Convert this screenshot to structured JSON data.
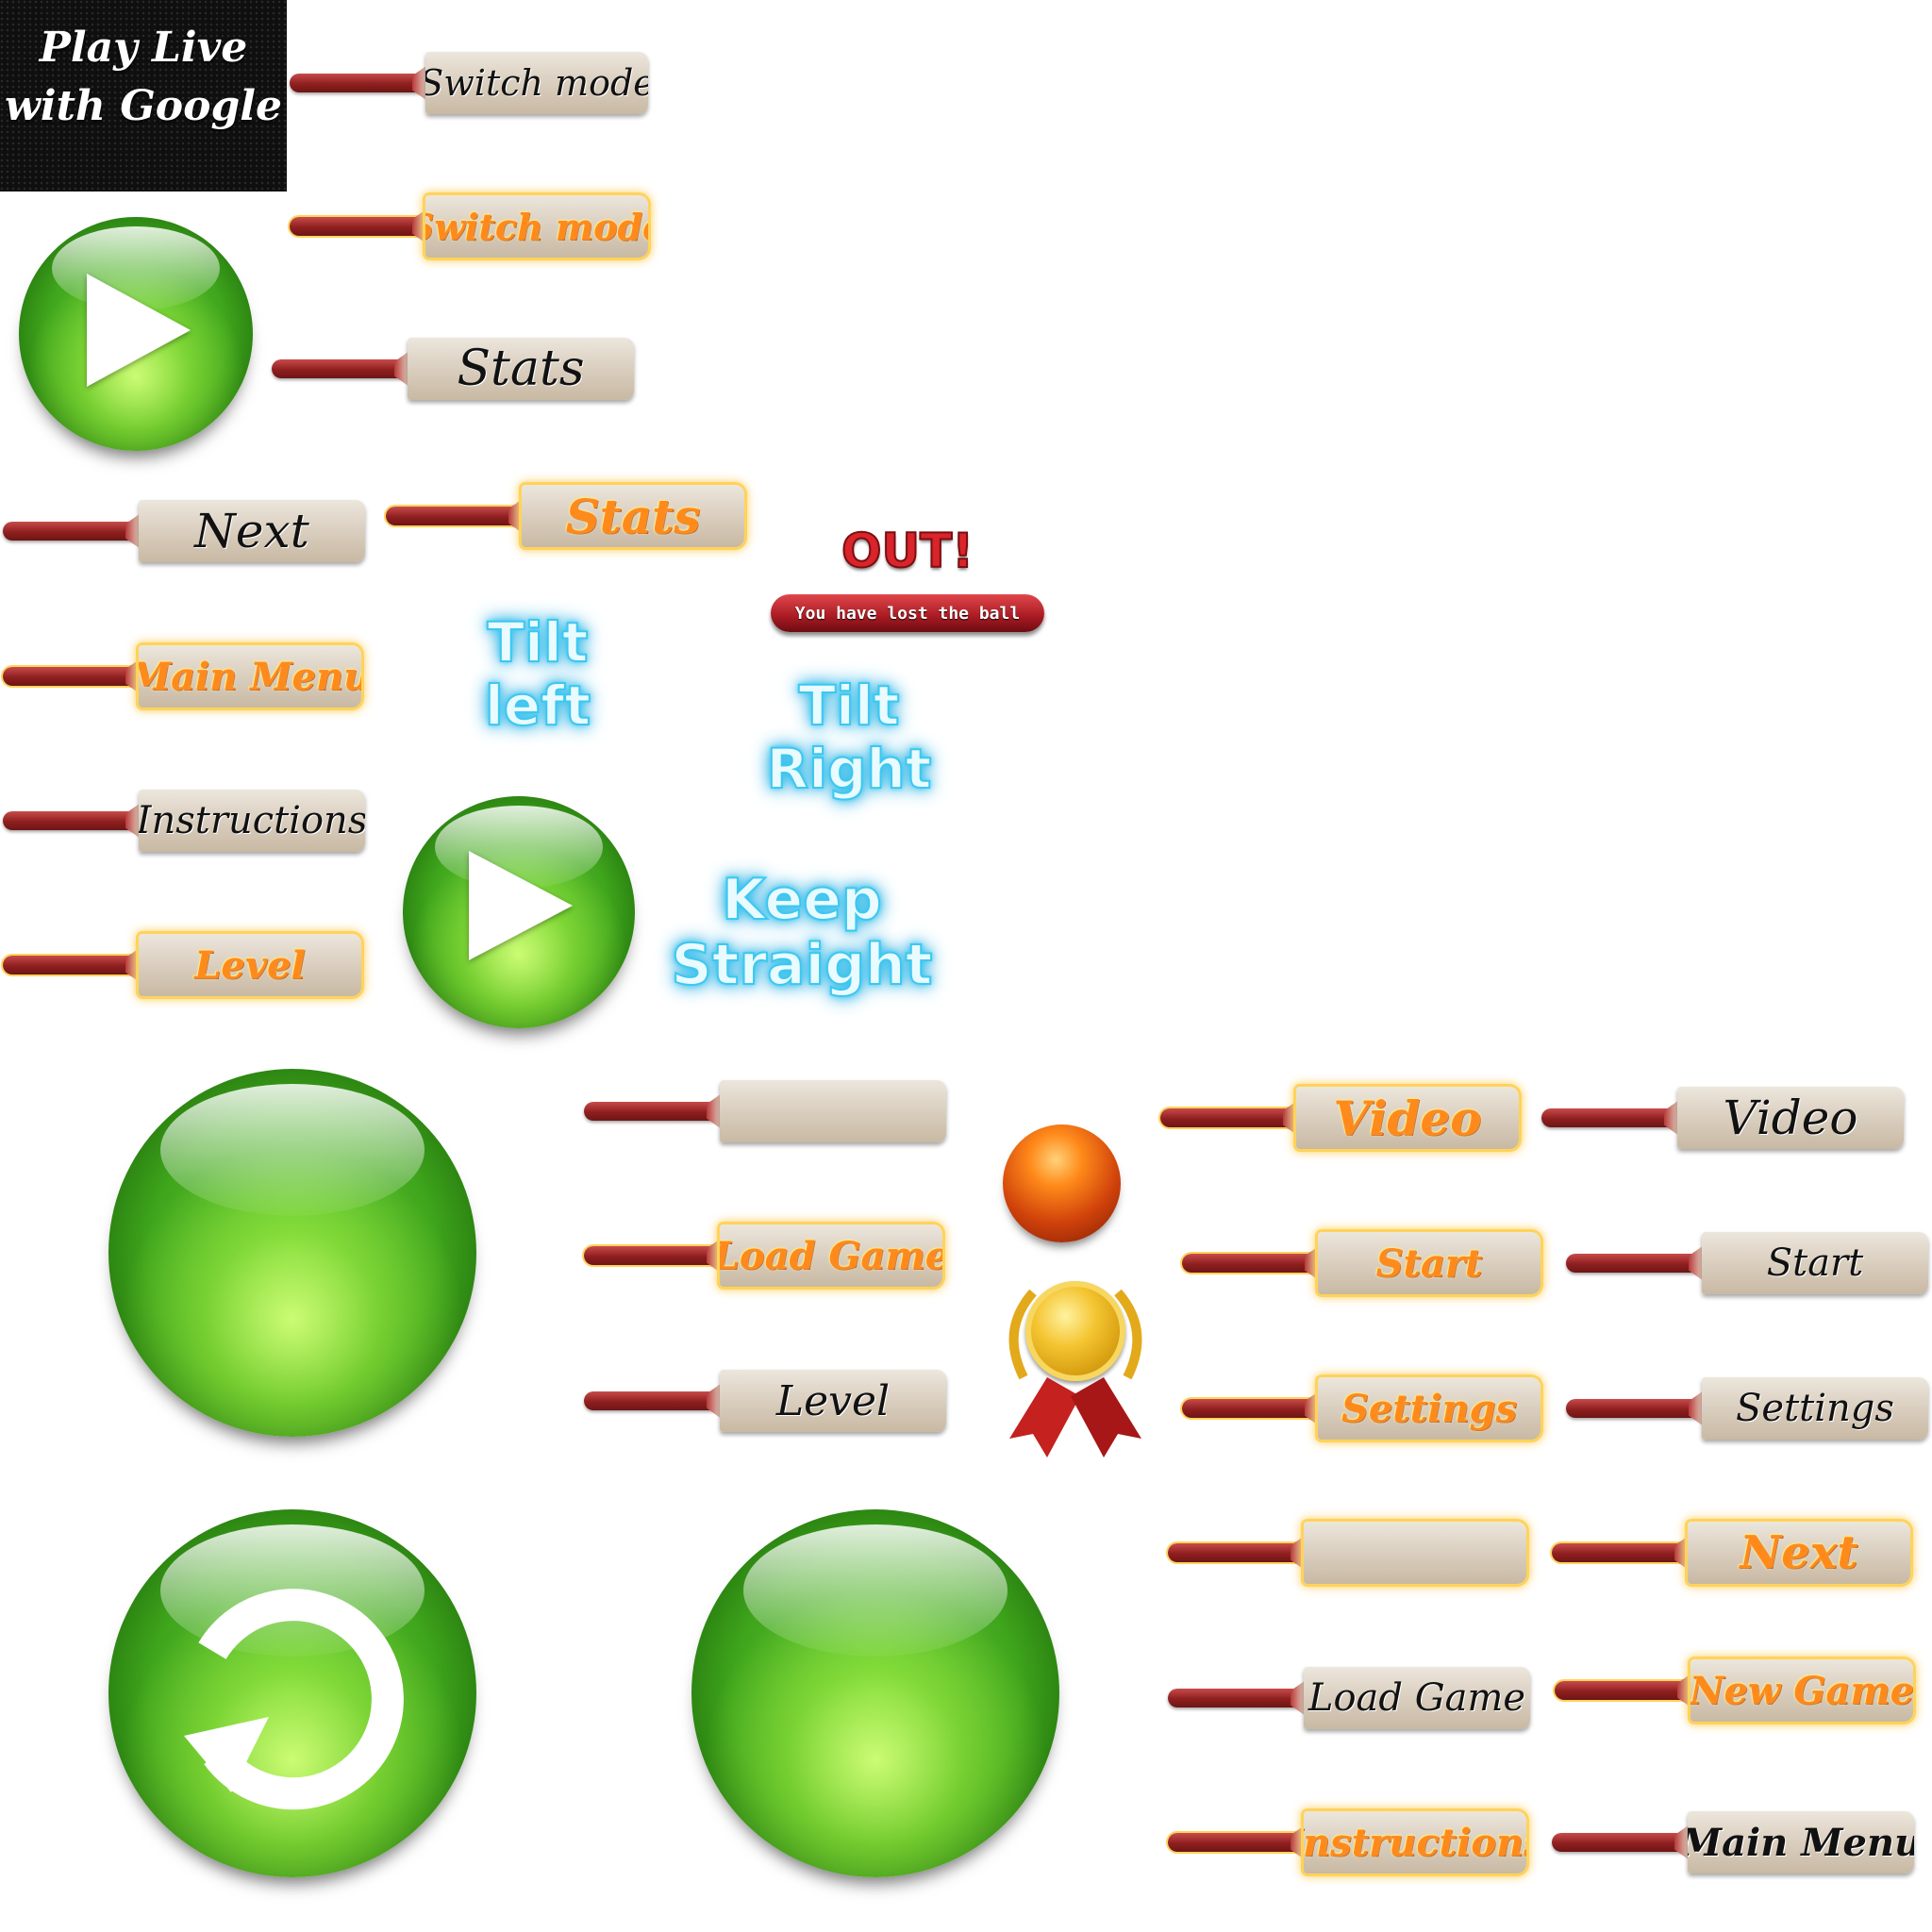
{
  "google_tile": {
    "line1": "Play Live",
    "line2": "with Google"
  },
  "buttons": {
    "switch_mode": "Switch mode",
    "switch_mode_active": "Switch mode",
    "stats": "Stats",
    "stats_active": "Stats",
    "next": "Next",
    "main_menu_active": "Main Menu",
    "instructions": "Instructions",
    "level_active": "Level",
    "blank": "",
    "load_game_active": "Load Game",
    "level": "Level",
    "video_active": "Video",
    "video": "Video",
    "start_active": "Start",
    "start": "Start",
    "settings_active": "Settings",
    "settings": "Settings",
    "blank_active": "",
    "next_active": "Next",
    "load_game": "Load Game",
    "new_game_active": "New Game",
    "instructions_active": "Instructions",
    "main_menu": "Main Menu"
  },
  "tilt": {
    "left_line1": "Tilt",
    "left_line2": "left",
    "right_line1": "Tilt",
    "right_line2": "Right",
    "straight_line1": "Keep",
    "straight_line2": "Straight"
  },
  "out_badge": {
    "title": "OUT!",
    "subtitle": "You have lost the ball"
  },
  "icons": {
    "orb_play": "play-icon",
    "orb_reset": "replay-icon",
    "ball": "cricket-ball-icon",
    "medal": "medal-icon"
  },
  "colors": {
    "orb_green": "#3fa51c",
    "handle_red": "#8f1f1f",
    "blade_wood": "#d8ccbc",
    "orange_label": "#ff8a1c",
    "glow_gold": "#ffd35a",
    "neon_blue": "#38c3ef",
    "out_red": "#d8242a"
  }
}
